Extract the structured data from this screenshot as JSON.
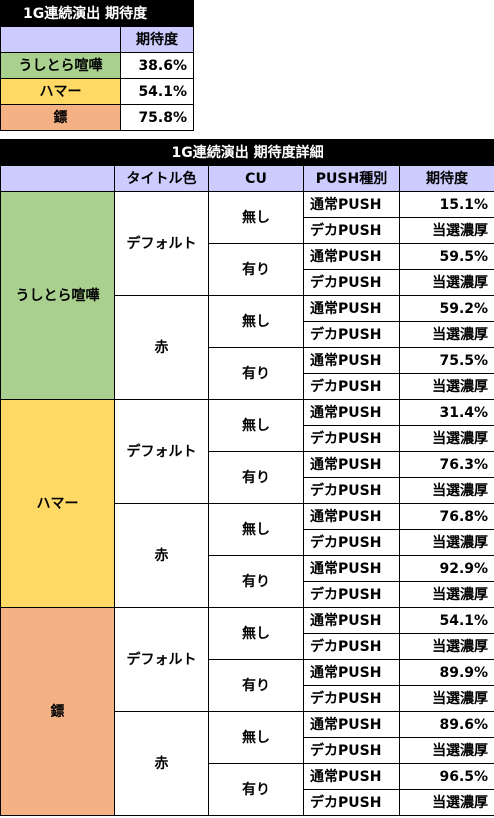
{
  "summary": {
    "title": "1G連続演出 期待度",
    "col_header": "期待度",
    "rows": [
      {
        "label": "うしとら喧嘩",
        "value": "38.6%"
      },
      {
        "label": "ハマー",
        "value": "54.1%"
      },
      {
        "label": "鏢",
        "value": "75.8%"
      }
    ]
  },
  "detail": {
    "title": "1G連続演出 期待度詳細",
    "headers": [
      "タイトル色",
      "CU",
      "PUSH種別",
      "期待度"
    ],
    "groups": [
      {
        "label": "うしとら喧嘩",
        "colors": [
          {
            "name": "デフォルト",
            "cu": [
              {
                "cu": "無し",
                "push": [
                  {
                    "type": "通常PUSH",
                    "value": "15.1%"
                  },
                  {
                    "type": "デカPUSH",
                    "value": "当選濃厚"
                  }
                ]
              },
              {
                "cu": "有り",
                "push": [
                  {
                    "type": "通常PUSH",
                    "value": "59.5%"
                  },
                  {
                    "type": "デカPUSH",
                    "value": "当選濃厚"
                  }
                ]
              }
            ]
          },
          {
            "name": "赤",
            "cu": [
              {
                "cu": "無し",
                "push": [
                  {
                    "type": "通常PUSH",
                    "value": "59.2%"
                  },
                  {
                    "type": "デカPUSH",
                    "value": "当選濃厚"
                  }
                ]
              },
              {
                "cu": "有り",
                "push": [
                  {
                    "type": "通常PUSH",
                    "value": "75.5%"
                  },
                  {
                    "type": "デカPUSH",
                    "value": "当選濃厚"
                  }
                ]
              }
            ]
          }
        ]
      },
      {
        "label": "ハマー",
        "colors": [
          {
            "name": "デフォルト",
            "cu": [
              {
                "cu": "無し",
                "push": [
                  {
                    "type": "通常PUSH",
                    "value": "31.4%"
                  },
                  {
                    "type": "デカPUSH",
                    "value": "当選濃厚"
                  }
                ]
              },
              {
                "cu": "有り",
                "push": [
                  {
                    "type": "通常PUSH",
                    "value": "76.3%"
                  },
                  {
                    "type": "デカPUSH",
                    "value": "当選濃厚"
                  }
                ]
              }
            ]
          },
          {
            "name": "赤",
            "cu": [
              {
                "cu": "無し",
                "push": [
                  {
                    "type": "通常PUSH",
                    "value": "76.8%"
                  },
                  {
                    "type": "デカPUSH",
                    "value": "当選濃厚"
                  }
                ]
              },
              {
                "cu": "有り",
                "push": [
                  {
                    "type": "通常PUSH",
                    "value": "92.9%"
                  },
                  {
                    "type": "デカPUSH",
                    "value": "当選濃厚"
                  }
                ]
              }
            ]
          }
        ]
      },
      {
        "label": "鏢",
        "colors": [
          {
            "name": "デフォルト",
            "cu": [
              {
                "cu": "無し",
                "push": [
                  {
                    "type": "通常PUSH",
                    "value": "54.1%"
                  },
                  {
                    "type": "デカPUSH",
                    "value": "当選濃厚"
                  }
                ]
              },
              {
                "cu": "有り",
                "push": [
                  {
                    "type": "通常PUSH",
                    "value": "89.9%"
                  },
                  {
                    "type": "デカPUSH",
                    "value": "当選濃厚"
                  }
                ]
              }
            ]
          },
          {
            "name": "赤",
            "cu": [
              {
                "cu": "無し",
                "push": [
                  {
                    "type": "通常PUSH",
                    "value": "89.6%"
                  },
                  {
                    "type": "デカPUSH",
                    "value": "当選濃厚"
                  }
                ]
              },
              {
                "cu": "有り",
                "push": [
                  {
                    "type": "通常PUSH",
                    "value": "96.5%"
                  },
                  {
                    "type": "デカPUSH",
                    "value": "当選濃厚"
                  }
                ]
              }
            ]
          }
        ]
      }
    ]
  }
}
